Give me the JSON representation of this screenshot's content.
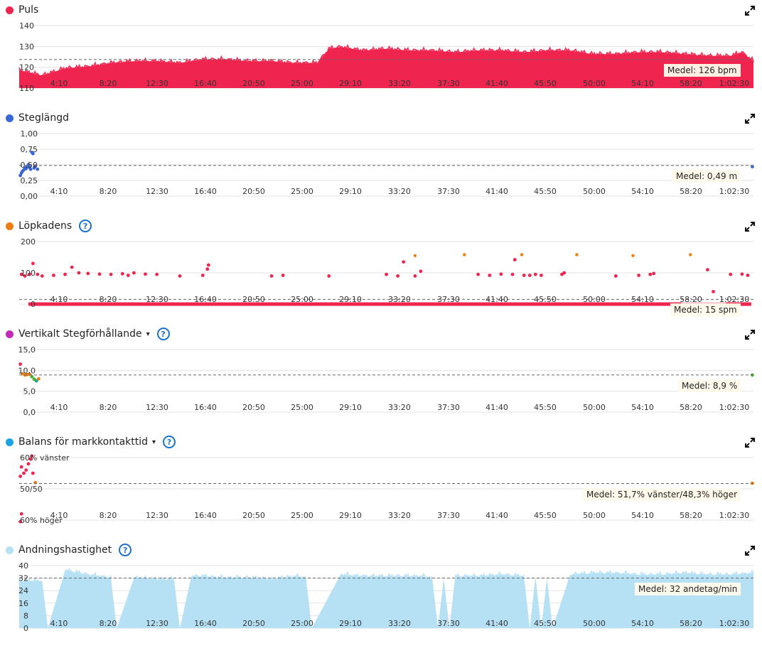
{
  "colors": {
    "puls": "#f0254f",
    "steglangd": "#3a67d8",
    "lopkadens": "#f07d10",
    "vertikalt": "#c42ab5",
    "balans": "#1aa3e6",
    "andning": "#b6e1f5",
    "help": "#1a73c8"
  },
  "icons": {
    "expand": "expand-icon",
    "help": "help-icon",
    "caret": "caret-down-icon"
  },
  "x_ticks": [
    "4:10",
    "8:20",
    "12:30",
    "16:40",
    "20:50",
    "25:00",
    "29:10",
    "33:20",
    "37:30",
    "41:40",
    "45:50",
    "50:00",
    "54:10",
    "58:20",
    "1:02:30"
  ],
  "help_symbol": "?",
  "caret_symbol": "▾",
  "chart_data": [
    {
      "id": "puls",
      "type": "area",
      "title": "Puls",
      "y_ticks": [
        "140",
        "130",
        "120",
        "110"
      ],
      "ylim": [
        110,
        145
      ],
      "average": 126,
      "average_label": "Medel: 126 bpm",
      "x_end_min": 64,
      "x": [
        0,
        2,
        4,
        6,
        8,
        10,
        12,
        14,
        16,
        18,
        20,
        22,
        24,
        26,
        27,
        28,
        30,
        32,
        34,
        36,
        38,
        40,
        42,
        44,
        46,
        48,
        50,
        52,
        54,
        56,
        58,
        60,
        62,
        63,
        64
      ],
      "values": [
        120,
        117,
        121,
        122,
        124,
        125,
        125,
        124,
        126,
        126,
        125,
        125,
        124,
        124,
        132,
        133,
        131,
        132,
        131,
        131,
        130,
        131,
        131,
        130,
        131,
        131,
        129,
        129,
        130,
        130,
        129,
        128,
        128,
        130,
        125
      ]
    },
    {
      "id": "steglangd",
      "type": "scatter",
      "title": "Steglängd",
      "y_ticks": [
        "1,00",
        "0,75",
        "0,50",
        "0,25",
        "0,00"
      ],
      "ylim": [
        0,
        1
      ],
      "average": 0.49,
      "average_label": "Medel: 0,49 m",
      "x_end_min": 64,
      "points": [
        [
          0.1,
          0.33
        ],
        [
          0.2,
          0.37
        ],
        [
          0.3,
          0.4
        ],
        [
          0.4,
          0.42
        ],
        [
          0.5,
          0.45
        ],
        [
          0.6,
          0.44
        ],
        [
          0.7,
          0.47
        ],
        [
          0.8,
          0.5
        ],
        [
          0.9,
          0.46
        ],
        [
          1.0,
          0.43
        ],
        [
          1.1,
          0.7
        ],
        [
          1.2,
          0.68
        ],
        [
          1.3,
          0.45
        ],
        [
          1.4,
          0.48
        ],
        [
          1.6,
          0.43
        ],
        [
          63.9,
          0.47
        ]
      ]
    },
    {
      "id": "lopkadens",
      "type": "scatter",
      "title": "Löpkadens",
      "y_ticks": [
        "200",
        "100",
        "0"
      ],
      "ylim": [
        0,
        200
      ],
      "average": 15,
      "average_label": "Medel: 15 spm",
      "x_end_min": 64,
      "points_red": [
        [
          0.2,
          95
        ],
        [
          0.5,
          90
        ],
        [
          0.9,
          95
        ],
        [
          1.2,
          130
        ],
        [
          1.6,
          95
        ],
        [
          2,
          90
        ],
        [
          3,
          92
        ],
        [
          4,
          95
        ],
        [
          4.6,
          118
        ],
        [
          5.2,
          100
        ],
        [
          6,
          98
        ],
        [
          7,
          96
        ],
        [
          8,
          95
        ],
        [
          9,
          97
        ],
        [
          9.5,
          92
        ],
        [
          10,
          100
        ],
        [
          11,
          96
        ],
        [
          12,
          95
        ],
        [
          14,
          90
        ],
        [
          16,
          92
        ],
        [
          16.4,
          112
        ],
        [
          16.5,
          125
        ],
        [
          22,
          90
        ],
        [
          23,
          92
        ],
        [
          27,
          90
        ],
        [
          32,
          95
        ],
        [
          33,
          90
        ],
        [
          33.5,
          135
        ],
        [
          34.5,
          90
        ],
        [
          35,
          105
        ],
        [
          40,
          95
        ],
        [
          41,
          92
        ],
        [
          42,
          96
        ],
        [
          43,
          95
        ],
        [
          43.2,
          142
        ],
        [
          44,
          92
        ],
        [
          44.5,
          92
        ],
        [
          45,
          95
        ],
        [
          45.5,
          92
        ],
        [
          47.3,
          95
        ],
        [
          47.5,
          100
        ],
        [
          52,
          90
        ],
        [
          54,
          92
        ],
        [
          55,
          95
        ],
        [
          55.3,
          98
        ],
        [
          60,
          110
        ],
        [
          60.5,
          40
        ],
        [
          62,
          95
        ],
        [
          63,
          96
        ],
        [
          63.5,
          92
        ]
      ],
      "points_orange": [
        [
          34.5,
          155
        ],
        [
          38.8,
          158
        ],
        [
          43.8,
          158
        ],
        [
          48.6,
          158
        ],
        [
          53.5,
          155
        ],
        [
          58.5,
          158
        ]
      ],
      "zero_band": true
    },
    {
      "id": "vertikalt",
      "type": "scatter",
      "title": "Vertikalt Stegförhållande",
      "y_ticks": [
        "15,0",
        "10,0",
        "5,0",
        "0,0"
      ],
      "ylim": [
        0,
        15
      ],
      "average": 8.9,
      "average_label": "Medel: 8,9 %",
      "x_end_min": 64,
      "points": [
        [
          0.1,
          11.5,
          "red"
        ],
        [
          0.3,
          9.2,
          "orange"
        ],
        [
          0.5,
          8.9,
          "orange"
        ],
        [
          0.7,
          9.0,
          "orange"
        ],
        [
          0.9,
          9.1,
          "orange"
        ],
        [
          1.1,
          8.5,
          "green"
        ],
        [
          1.3,
          7.9,
          "green"
        ],
        [
          1.5,
          7.5,
          "teal"
        ],
        [
          1.7,
          8.0,
          "orange"
        ],
        [
          63.9,
          8.9,
          "green"
        ]
      ]
    },
    {
      "id": "balans",
      "type": "scatter",
      "title": "Balans för markkontakttid",
      "y_ticks": [
        "60% vänster",
        "50/50",
        "60% höger"
      ],
      "ylim": [
        40,
        60
      ],
      "average": 51.7,
      "average_label": "Medel: 51,7% vänster/48,3% höger",
      "x_end_min": 64,
      "points": [
        [
          0.1,
          54,
          "red"
        ],
        [
          0.2,
          57,
          "red"
        ],
        [
          0.4,
          55,
          "red"
        ],
        [
          0.6,
          56,
          "red"
        ],
        [
          0.8,
          58,
          "red"
        ],
        [
          1.0,
          59.5,
          "red"
        ],
        [
          1.1,
          60.5,
          "red"
        ],
        [
          1.2,
          55,
          "red"
        ],
        [
          0.2,
          42,
          "red"
        ],
        [
          0.1,
          39.5,
          "red"
        ],
        [
          1.4,
          52,
          "orange"
        ],
        [
          63.9,
          51.8,
          "orange"
        ]
      ]
    },
    {
      "id": "andning",
      "type": "area",
      "title": "Andningshastighet",
      "y_ticks": [
        "40",
        "32",
        "24",
        "16",
        "8",
        "0"
      ],
      "ylim": [
        0,
        40
      ],
      "average": 32,
      "average_label": "Medel: 32 andetag/min",
      "x_end_min": 64,
      "x": [
        0,
        2,
        2.5,
        4,
        6,
        8,
        8.5,
        10,
        12,
        13.5,
        14,
        15,
        16,
        18,
        20,
        22,
        24,
        25,
        25.5,
        28,
        30,
        32,
        34,
        35,
        36,
        36.5,
        37,
        37.5,
        38,
        40,
        42,
        44,
        44.5,
        45,
        45.5,
        46,
        46.5,
        48,
        50,
        52,
        54,
        56,
        58,
        60,
        62,
        64
      ],
      "values": [
        30,
        30,
        0,
        37,
        34,
        32,
        0,
        32,
        31,
        31,
        0,
        33,
        33,
        32,
        32,
        31,
        33,
        32,
        0,
        34,
        33,
        33,
        33,
        33,
        32,
        0,
        32,
        0,
        33,
        33,
        34,
        33,
        0,
        33,
        0,
        32,
        0,
        34,
        35,
        35,
        34,
        34,
        35,
        34,
        34,
        35
      ]
    }
  ]
}
